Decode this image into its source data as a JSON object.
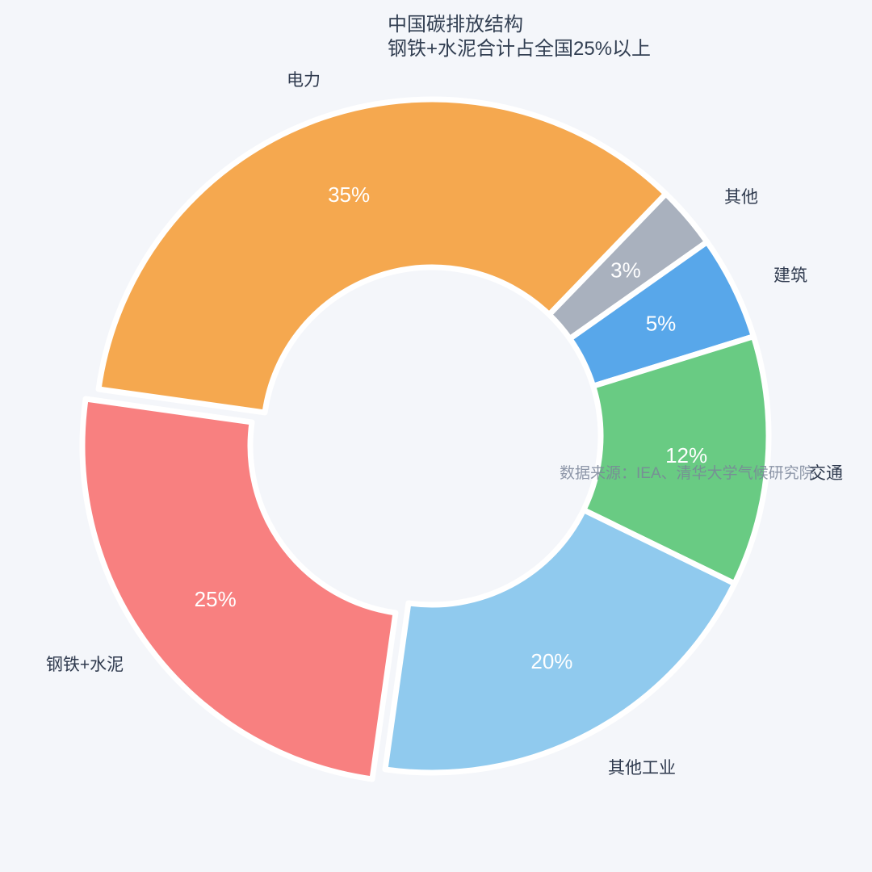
{
  "chart_data": {
    "type": "pie",
    "subtype": "donut",
    "title": "中国碳排放结构",
    "subtitle": "钢铁+水泥合计占全国25%以上",
    "source": "数据来源：IEA、清华大学气候研究院",
    "unit": "%",
    "categories": [
      "电力",
      "其他",
      "建筑",
      "交通",
      "其他工业",
      "钢铁+水泥"
    ],
    "values": [
      35,
      3,
      5,
      12,
      20,
      25
    ],
    "labels_inside": [
      "35%",
      "3%",
      "5%",
      "12%",
      "20%",
      "25%"
    ],
    "colors": [
      "#F5A84F",
      "#A9B1BE",
      "#58A7EA",
      "#69CB83",
      "#90CAEE",
      "#F88080"
    ],
    "start_angle": 172,
    "clockwise": true,
    "inner_radius_ratio": 0.5,
    "exploded_slice": "钢铁+水泥",
    "explode_index": 5,
    "legend": "none",
    "grid": "off",
    "background": "#F4F6FA",
    "border_color": "#FFFFFF",
    "title_color": "#323F52",
    "category_label_color": "#2F3A4E",
    "inside_label_color": "#FFFFFF",
    "source_color": "#7A8599"
  }
}
